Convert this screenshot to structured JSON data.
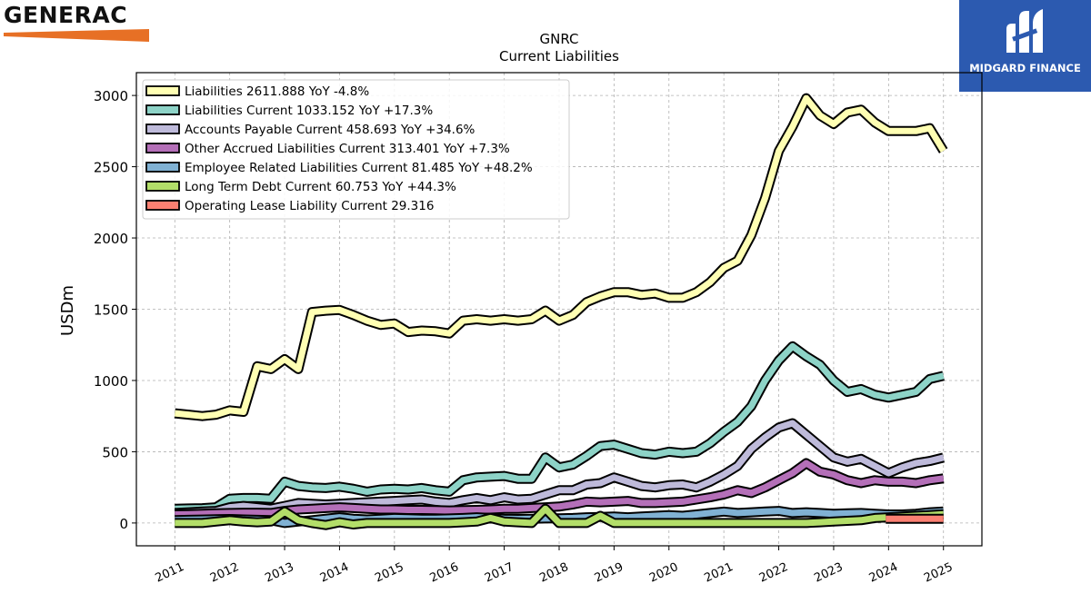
{
  "brand": {
    "name": "GENERAC",
    "trademark": "®",
    "bar_color": "#e77025"
  },
  "logo": {
    "name": "MIDGARD FINANCE",
    "bg_color": "#2c5ab0"
  },
  "chart_data": {
    "type": "line",
    "title": "GNRC",
    "subtitle": "Current  Liabilities",
    "ylabel": "USDm",
    "xlabel": "",
    "ylim": [
      -160,
      3160
    ],
    "xlim": [
      2010.3,
      2025.7
    ],
    "yticks": [
      0,
      500,
      1000,
      1500,
      2000,
      2500,
      3000
    ],
    "xticks": [
      "2011",
      "2012",
      "2013",
      "2014",
      "2015",
      "2016",
      "2017",
      "2018",
      "2019",
      "2020",
      "2021",
      "2022",
      "2023",
      "2024",
      "2025"
    ],
    "grid": true,
    "legend_position": "top-left",
    "series": [
      {
        "name": "Liabilities",
        "legend": "Liabilities  2611.888 YoY -4.8%",
        "color": "#ffffb3",
        "x": [
          2011.0,
          2011.25,
          2011.5,
          2011.75,
          2012.0,
          2012.25,
          2012.5,
          2012.75,
          2013.0,
          2013.25,
          2013.5,
          2013.75,
          2014.0,
          2014.25,
          2014.5,
          2014.75,
          2015.0,
          2015.25,
          2015.5,
          2015.75,
          2016.0,
          2016.25,
          2016.5,
          2016.75,
          2017.0,
          2017.25,
          2017.5,
          2017.75,
          2018.0,
          2018.25,
          2018.5,
          2018.75,
          2019.0,
          2019.25,
          2019.5,
          2019.75,
          2020.0,
          2020.25,
          2020.5,
          2020.75,
          2021.0,
          2021.25,
          2021.5,
          2021.75,
          2022.0,
          2022.25,
          2022.5,
          2022.75,
          2023.0,
          2023.25,
          2023.5,
          2023.75,
          2024.0,
          2024.25,
          2024.5,
          2024.75,
          2025.0
        ],
        "y": [
          770,
          760,
          750,
          760,
          790,
          780,
          1100,
          1080,
          1150,
          1080,
          1480,
          1490,
          1495,
          1460,
          1420,
          1390,
          1400,
          1340,
          1350,
          1345,
          1330,
          1420,
          1430,
          1420,
          1430,
          1420,
          1430,
          1490,
          1420,
          1460,
          1550,
          1590,
          1620,
          1620,
          1600,
          1610,
          1580,
          1580,
          1620,
          1690,
          1790,
          1840,
          2020,
          2280,
          2610,
          2780,
          2980,
          2860,
          2800,
          2880,
          2900,
          2810,
          2750,
          2750,
          2750,
          2770,
          2612
        ]
      },
      {
        "name": "Liabilities Current",
        "legend": "Liabilities Current  1033.152 YoY +17.3%",
        "color": "#8dd3c7",
        "x": [
          2011.0,
          2011.25,
          2011.5,
          2011.75,
          2012.0,
          2012.25,
          2012.5,
          2012.75,
          2013.0,
          2013.25,
          2013.5,
          2013.75,
          2014.0,
          2014.25,
          2014.5,
          2014.75,
          2015.0,
          2015.25,
          2015.5,
          2015.75,
          2016.0,
          2016.25,
          2016.5,
          2016.75,
          2017.0,
          2017.25,
          2017.5,
          2017.75,
          2018.0,
          2018.25,
          2018.5,
          2018.75,
          2019.0,
          2019.25,
          2019.5,
          2019.75,
          2020.0,
          2020.25,
          2020.5,
          2020.75,
          2021.0,
          2021.25,
          2021.5,
          2021.75,
          2022.0,
          2022.25,
          2022.5,
          2022.75,
          2023.0,
          2023.25,
          2023.5,
          2023.75,
          2024.0,
          2024.25,
          2024.5,
          2024.75,
          2025.0
        ],
        "y": [
          100,
          102,
          104,
          110,
          170,
          175,
          175,
          170,
          290,
          260,
          250,
          245,
          255,
          240,
          220,
          235,
          240,
          235,
          245,
          230,
          220,
          300,
          320,
          325,
          330,
          310,
          310,
          460,
          390,
          410,
          470,
          540,
          550,
          520,
          490,
          480,
          500,
          490,
          500,
          560,
          640,
          710,
          820,
          1000,
          1140,
          1240,
          1170,
          1110,
          1000,
          920,
          940,
          900,
          880,
          900,
          920,
          1010,
          1033
        ]
      },
      {
        "name": "Accounts Payable Current",
        "legend": "Accounts Payable Current  458.693 YoY +34.6%",
        "color": "#bebada",
        "x": [
          2011.0,
          2011.25,
          2011.5,
          2011.75,
          2012.0,
          2012.25,
          2012.5,
          2012.75,
          2013.0,
          2013.25,
          2013.5,
          2013.75,
          2014.0,
          2014.25,
          2014.5,
          2014.75,
          2015.0,
          2015.25,
          2015.5,
          2015.75,
          2016.0,
          2016.25,
          2016.5,
          2016.75,
          2017.0,
          2017.25,
          2017.5,
          2017.75,
          2018.0,
          2018.25,
          2018.5,
          2018.75,
          2019.0,
          2019.25,
          2019.5,
          2019.75,
          2020.0,
          2020.25,
          2020.5,
          2020.75,
          2021.0,
          2021.25,
          2021.5,
          2021.75,
          2022.0,
          2022.25,
          2022.5,
          2022.75,
          2023.0,
          2023.25,
          2023.5,
          2023.75,
          2024.0,
          2024.25,
          2024.5,
          2024.75,
          2025.0
        ],
        "y": [
          70,
          75,
          80,
          85,
          110,
          120,
          110,
          100,
          120,
          140,
          135,
          130,
          135,
          140,
          145,
          150,
          155,
          160,
          165,
          150,
          140,
          160,
          175,
          160,
          180,
          165,
          170,
          200,
          230,
          230,
          270,
          280,
          320,
          290,
          260,
          250,
          265,
          270,
          250,
          290,
          340,
          400,
          520,
          600,
          670,
          700,
          620,
          540,
          460,
          430,
          450,
          400,
          350,
          390,
          420,
          435,
          459
        ]
      },
      {
        "name": "Other Accrued Liabilities Current",
        "legend": "Other Accrued Liabilities Current  313.401 YoY +7.3%",
        "color": "#b46fb8",
        "x": [
          2011.0,
          2011.25,
          2011.5,
          2011.75,
          2012.0,
          2012.25,
          2012.5,
          2012.75,
          2013.0,
          2013.25,
          2013.5,
          2013.75,
          2014.0,
          2014.25,
          2014.5,
          2014.75,
          2015.0,
          2015.25,
          2015.5,
          2015.75,
          2016.0,
          2016.25,
          2016.5,
          2016.75,
          2017.0,
          2017.25,
          2017.5,
          2017.75,
          2018.0,
          2018.25,
          2018.5,
          2018.75,
          2019.0,
          2019.25,
          2019.5,
          2019.75,
          2020.0,
          2020.25,
          2020.5,
          2020.75,
          2021.0,
          2021.25,
          2021.5,
          2021.75,
          2022.0,
          2022.25,
          2022.5,
          2022.75,
          2023.0,
          2023.25,
          2023.5,
          2023.75,
          2024.0,
          2024.25,
          2024.5,
          2024.75,
          2025.0
        ],
        "y": [
          60,
          62,
          65,
          68,
          70,
          72,
          72,
          70,
          85,
          95,
          100,
          105,
          110,
          105,
          100,
          95,
          95,
          92,
          92,
          90,
          88,
          90,
          92,
          95,
          100,
          100,
          105,
          110,
          115,
          130,
          150,
          145,
          150,
          155,
          140,
          140,
          145,
          150,
          165,
          180,
          200,
          230,
          210,
          250,
          300,
          350,
          420,
          360,
          340,
          300,
          280,
          300,
          290,
          290,
          280,
          300,
          313
        ]
      },
      {
        "name": "Employee Related Liabilities Current",
        "legend": "Employee Related Liabilities Current  81.485 YoY +48.2%",
        "color": "#80b1d3",
        "x": [
          2011.0,
          2011.25,
          2011.5,
          2011.75,
          2012.0,
          2012.25,
          2012.5,
          2012.75,
          2013.0,
          2013.25,
          2013.5,
          2013.75,
          2014.0,
          2014.25,
          2014.5,
          2014.75,
          2015.0,
          2015.25,
          2015.5,
          2015.75,
          2016.0,
          2016.25,
          2016.5,
          2016.75,
          2017.0,
          2017.25,
          2017.5,
          2017.75,
          2018.0,
          2018.25,
          2018.5,
          2018.75,
          2019.0,
          2019.25,
          2019.5,
          2019.75,
          2020.0,
          2020.25,
          2020.5,
          2020.75,
          2021.0,
          2021.25,
          2021.5,
          2021.75,
          2022.0,
          2022.25,
          2022.5,
          2022.75,
          2023.0,
          2023.25,
          2023.5,
          2023.75,
          2024.0,
          2024.25,
          2024.5,
          2024.75,
          2025.0
        ],
        "y": [
          20,
          22,
          24,
          26,
          28,
          25,
          22,
          20,
          0,
          10,
          20,
          30,
          40,
          30,
          25,
          30,
          35,
          33,
          30,
          30,
          32,
          35,
          40,
          35,
          30,
          28,
          30,
          32,
          33,
          35,
          40,
          42,
          45,
          40,
          45,
          50,
          55,
          50,
          60,
          70,
          80,
          70,
          75,
          80,
          85,
          70,
          75,
          70,
          65,
          68,
          70,
          65,
          60,
          60,
          65,
          75,
          81
        ]
      },
      {
        "name": "Long Term Debt Current",
        "legend": "Long Term Debt Current  60.753 YoY +44.3%",
        "color": "#b3de69",
        "x": [
          2011.0,
          2011.25,
          2011.5,
          2011.75,
          2012.0,
          2012.25,
          2012.5,
          2012.75,
          2013.0,
          2013.25,
          2013.5,
          2013.75,
          2014.0,
          2014.25,
          2014.5,
          2014.75,
          2015.0,
          2015.25,
          2015.5,
          2015.75,
          2016.0,
          2016.25,
          2016.5,
          2016.75,
          2017.0,
          2017.25,
          2017.5,
          2017.75,
          2018.0,
          2018.25,
          2018.5,
          2018.75,
          2019.0,
          2019.25,
          2019.5,
          2019.75,
          2020.0,
          2020.25,
          2020.5,
          2020.75,
          2021.0,
          2021.25,
          2021.5,
          2021.75,
          2022.0,
          2022.25,
          2022.5,
          2022.75,
          2023.0,
          2023.25,
          2023.5,
          2023.75,
          2024.0,
          2024.25,
          2024.5,
          2024.75,
          2025.0
        ],
        "y": [
          0,
          0,
          0,
          10,
          20,
          10,
          5,
          10,
          80,
          20,
          0,
          -15,
          5,
          -10,
          0,
          0,
          0,
          0,
          0,
          0,
          0,
          5,
          10,
          35,
          10,
          5,
          0,
          100,
          0,
          0,
          0,
          50,
          0,
          0,
          0,
          0,
          0,
          0,
          0,
          0,
          0,
          0,
          0,
          0,
          0,
          0,
          0,
          5,
          10,
          15,
          20,
          35,
          40,
          45,
          50,
          55,
          61
        ]
      },
      {
        "name": "Operating Lease Liability Current",
        "legend": "Operating Lease Liability Current  29.316",
        "color": "#fb8072",
        "x": [
          2023.95,
          2024.0,
          2024.25,
          2024.5,
          2024.75,
          2025.0
        ],
        "y": [
          29,
          29,
          29,
          29,
          29,
          29
        ]
      }
    ]
  }
}
